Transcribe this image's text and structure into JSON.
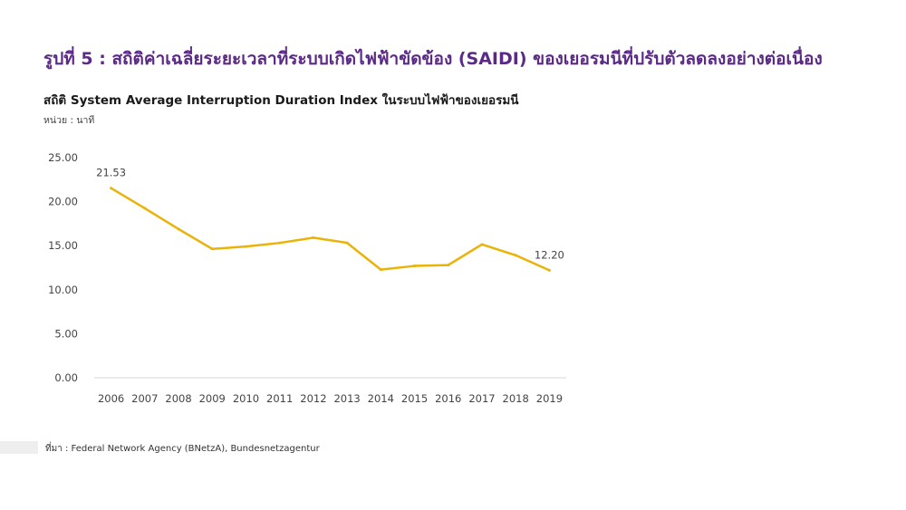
{
  "figure_title": "รูปที่ 5 : สถิติค่าเฉลี่ยระยะเวลาที่ระบบเกิดไฟฟ้าขัดข้อง (SAIDI) ของเยอรมนีที่ปรับตัวลดลงอย่างต่อเนื่อง",
  "unit_label": "หน่วย : นาที",
  "source": "ที่มา : Federal Network Agency (BNetzA), Bundesnetzagentur",
  "chart_data": {
    "type": "line",
    "title": "สถิติ System Average Interruption Duration Index ในระบบไฟฟ้าของเยอรมนี",
    "xlabel": "",
    "ylabel": "",
    "categories": [
      "2006",
      "2007",
      "2008",
      "2009",
      "2010",
      "2011",
      "2012",
      "2013",
      "2014",
      "2015",
      "2016",
      "2017",
      "2018",
      "2019"
    ],
    "series": [
      {
        "values": [
          21.53,
          19.25,
          16.89,
          14.63,
          14.9,
          15.31,
          15.91,
          15.32,
          12.28,
          12.7,
          12.8,
          15.14,
          13.91,
          12.2
        ],
        "color": "#eab308"
      }
    ],
    "y_ticks": [
      "25.00",
      "20.00",
      "15.00",
      "10.00",
      "5.00",
      "0.00"
    ],
    "ylim": [
      0,
      25
    ],
    "data_labels": [
      {
        "index": 0,
        "text": "21.53"
      },
      {
        "index": 13,
        "text": "12.20"
      }
    ],
    "grid": false,
    "legend": "none"
  }
}
